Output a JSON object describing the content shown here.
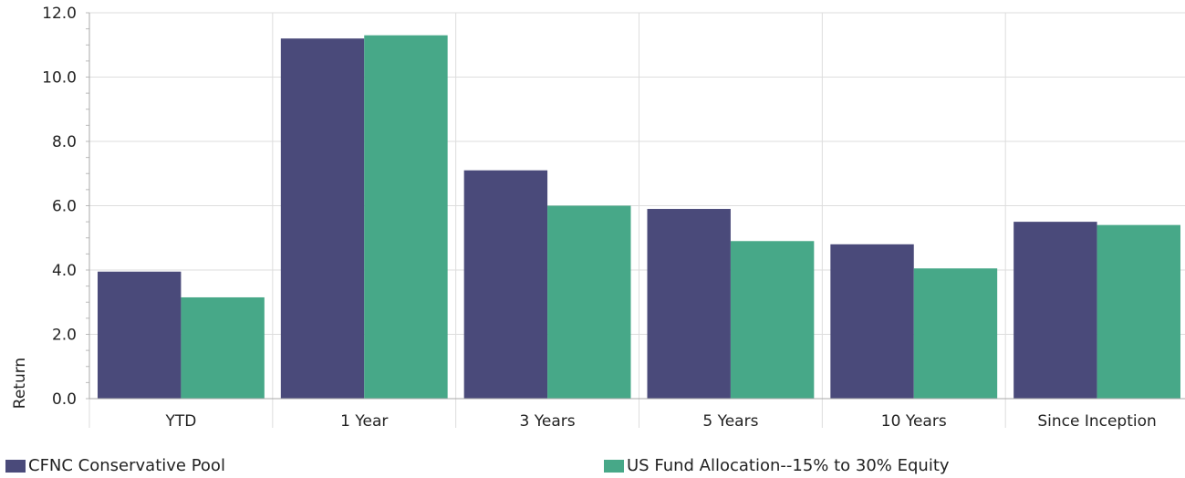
{
  "chart_data": {
    "type": "bar",
    "categories": [
      "YTD",
      "1 Year",
      "3 Years",
      "5 Years",
      "10 Years",
      "Since Inception"
    ],
    "series": [
      {
        "name": "CFNC Conservative Pool",
        "color": "#4a4a7a",
        "values": [
          3.95,
          11.2,
          7.1,
          5.9,
          4.8,
          5.5
        ]
      },
      {
        "name": "US Fund Allocation--15% to 30% Equity",
        "color": "#47a888",
        "values": [
          3.15,
          11.3,
          6.0,
          4.9,
          4.05,
          5.4
        ]
      }
    ],
    "ylabel": "Return",
    "xlabel": "",
    "ylim": [
      0,
      12
    ],
    "yticks": [
      "0.0",
      "2.0",
      "4.0",
      "6.0",
      "8.0",
      "10.0",
      "12.0"
    ],
    "grid": true,
    "legend_position": "bottom"
  }
}
